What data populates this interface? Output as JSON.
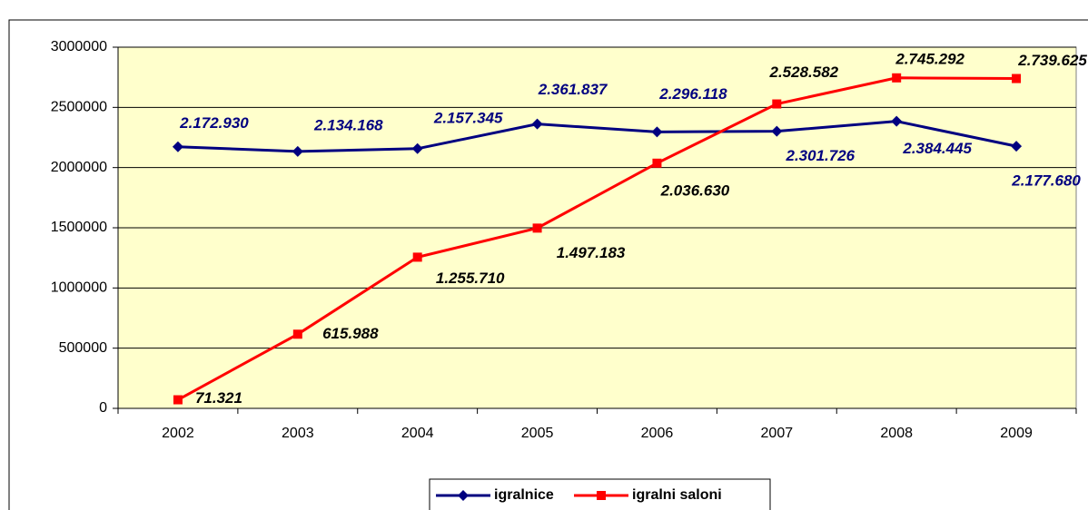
{
  "chart_data": {
    "type": "line",
    "categories": [
      "2002",
      "2003",
      "2004",
      "2005",
      "2006",
      "2007",
      "2008",
      "2009"
    ],
    "series": [
      {
        "name": "igralnice",
        "color": "#000080",
        "marker": "diamond",
        "values": [
          2172930,
          2134168,
          2157345,
          2361837,
          2296118,
          2301726,
          2384445,
          2177680
        ],
        "value_labels": [
          "2.172.930",
          "2.134.168",
          "2.157.345",
          "2.361.837",
          "2.296.118",
          "2.301.726",
          "2.384.445",
          "2.177.680"
        ]
      },
      {
        "name": "igralni saloni",
        "color": "#FF0000",
        "marker": "square",
        "values": [
          71321,
          615988,
          1255710,
          1497183,
          2036630,
          2528582,
          2745292,
          2739625
        ],
        "value_labels": [
          "71.321",
          "615.988",
          "1.255.710",
          "1.497.183",
          "2.036.630",
          "2.528.582",
          "2.745.292",
          "2.739.625"
        ]
      }
    ],
    "ylim": [
      0,
      3000000
    ],
    "yticks": [
      0,
      500000,
      1000000,
      1500000,
      2000000,
      2500000,
      3000000
    ],
    "grid": true,
    "legend": "bottom"
  }
}
